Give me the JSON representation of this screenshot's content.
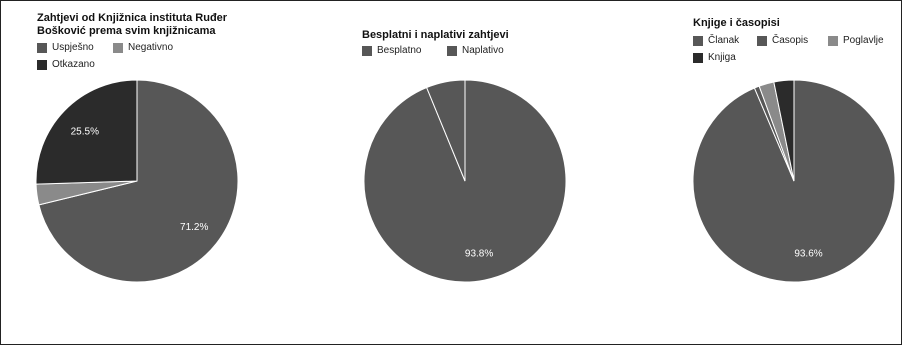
{
  "colors": {
    "dark": "#2b2b2b",
    "mid": "#575757",
    "light": "#8a8a8a",
    "separator": "#ffffff"
  },
  "chart_data": [
    {
      "type": "pie",
      "title": "Zahtjevi od Knjižnica instituta Ruđer\nBošković prema svim knjižnicama",
      "legend_position": "top",
      "slices": [
        {
          "label": "Uspješno",
          "value": 71.2,
          "color": "#575757",
          "data_label": "71.2%"
        },
        {
          "label": "Negativno",
          "value": 3.3,
          "color": "#8a8a8a",
          "data_label": ""
        },
        {
          "label": "Otkazano",
          "value": 25.5,
          "color": "#2b2b2b",
          "data_label": "25.5%"
        }
      ]
    },
    {
      "type": "pie",
      "title": "Besplatni i naplativi zahtjevi",
      "legend_position": "top",
      "slices": [
        {
          "label": "Besplatno",
          "value": 93.8,
          "color": "#575757",
          "data_label": "93.8%"
        },
        {
          "label": "Naplativo",
          "value": 6.2,
          "color": "#575757",
          "data_label": ""
        }
      ]
    },
    {
      "type": "pie",
      "title": "Knjige i časopisi",
      "legend_position": "top",
      "slices": [
        {
          "label": "Članak",
          "value": 93.6,
          "color": "#575757",
          "data_label": "93.6%"
        },
        {
          "label": "Časopis",
          "value": 0.8,
          "color": "#575757",
          "data_label": ""
        },
        {
          "label": "Poglavlje",
          "value": 2.4,
          "color": "#8a8a8a",
          "data_label": ""
        },
        {
          "label": "Knjiga",
          "value": 3.2,
          "color": "#2b2b2b",
          "data_label": ""
        }
      ]
    }
  ]
}
